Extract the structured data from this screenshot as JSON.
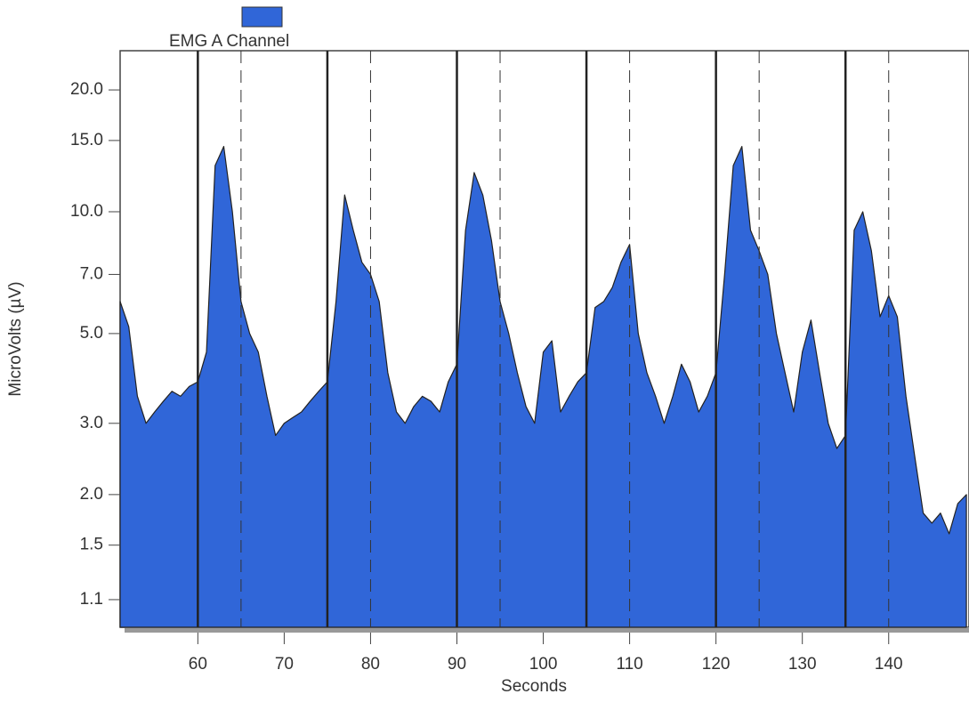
{
  "chart_data": {
    "type": "area",
    "x_label": "Seconds",
    "y_label": "MicroVolts (µV)",
    "y_scale": "log",
    "series": [
      {
        "name": "EMG  A  Channel",
        "color": "#3066d8",
        "values": [
          6.0,
          5.2,
          3.5,
          3.0,
          3.2,
          3.4,
          3.6,
          3.5,
          3.7,
          3.8,
          4.5,
          13,
          14.5,
          10,
          6,
          5,
          4.5,
          3.5,
          2.8,
          3.0,
          3.1,
          3.2,
          3.4,
          3.6,
          3.8,
          6,
          11,
          9,
          7.5,
          7,
          6,
          4,
          3.2,
          3.0,
          3.3,
          3.5,
          3.4,
          3.2,
          3.8,
          4.2,
          9,
          12.5,
          11,
          8.5,
          6,
          5,
          4,
          3.3,
          3.0,
          4.5,
          4.8,
          3.2,
          3.5,
          3.8,
          4.0,
          5.8,
          6,
          6.5,
          7.5,
          8.3,
          5,
          4,
          3.5,
          3.0,
          3.5,
          4.2,
          3.8,
          3.2,
          3.5,
          4.0,
          7,
          13,
          14.5,
          9,
          8,
          7,
          5,
          4,
          3.2,
          4.5,
          5.4,
          4,
          3.0,
          2.6,
          2.8,
          9,
          10,
          8,
          5.5,
          6.2,
          5.5,
          3.5,
          2.5,
          1.8,
          1.7,
          1.8,
          1.6,
          1.9,
          2.0
        ]
      }
    ],
    "x": [
      51,
      52,
      53,
      54,
      55,
      56,
      57,
      58,
      59,
      60,
      61,
      62,
      63,
      64,
      65,
      66,
      67,
      68,
      69,
      70,
      71,
      72,
      73,
      74,
      75,
      76,
      77,
      78,
      79,
      80,
      81,
      82,
      83,
      84,
      85,
      86,
      87,
      88,
      89,
      90,
      91,
      92,
      93,
      94,
      95,
      96,
      97,
      98,
      99,
      100,
      101,
      102,
      103,
      104,
      105,
      106,
      107,
      108,
      109,
      110,
      111,
      112,
      113,
      114,
      115,
      116,
      117,
      118,
      119,
      120,
      121,
      122,
      123,
      124,
      125,
      126,
      127,
      128,
      129,
      130,
      131,
      132,
      133,
      134,
      135,
      136,
      137,
      138,
      139,
      140,
      141,
      142,
      143,
      144,
      145,
      146,
      147,
      148,
      149
    ],
    "xlim": [
      51,
      149.3
    ],
    "xticks": [
      60,
      70,
      80,
      90,
      100,
      110,
      120,
      130,
      140
    ],
    "ylim": [
      0.94,
      25
    ],
    "yticks": [
      1.1,
      1.5,
      {
        "value": 2,
        "label": "2.0"
      },
      {
        "value": 3,
        "label": "3.0"
      },
      {
        "value": 5,
        "label": "5.0"
      },
      {
        "value": 7,
        "label": "7.0"
      },
      {
        "value": 10,
        "label": "10.0"
      },
      {
        "value": 15,
        "label": "15.0"
      },
      {
        "value": 20,
        "label": "20.0"
      }
    ],
    "event_lines": [
      60,
      75,
      90,
      105,
      120,
      135
    ],
    "event_lines_dashed": [
      65,
      80,
      95,
      110,
      125,
      140
    ]
  }
}
